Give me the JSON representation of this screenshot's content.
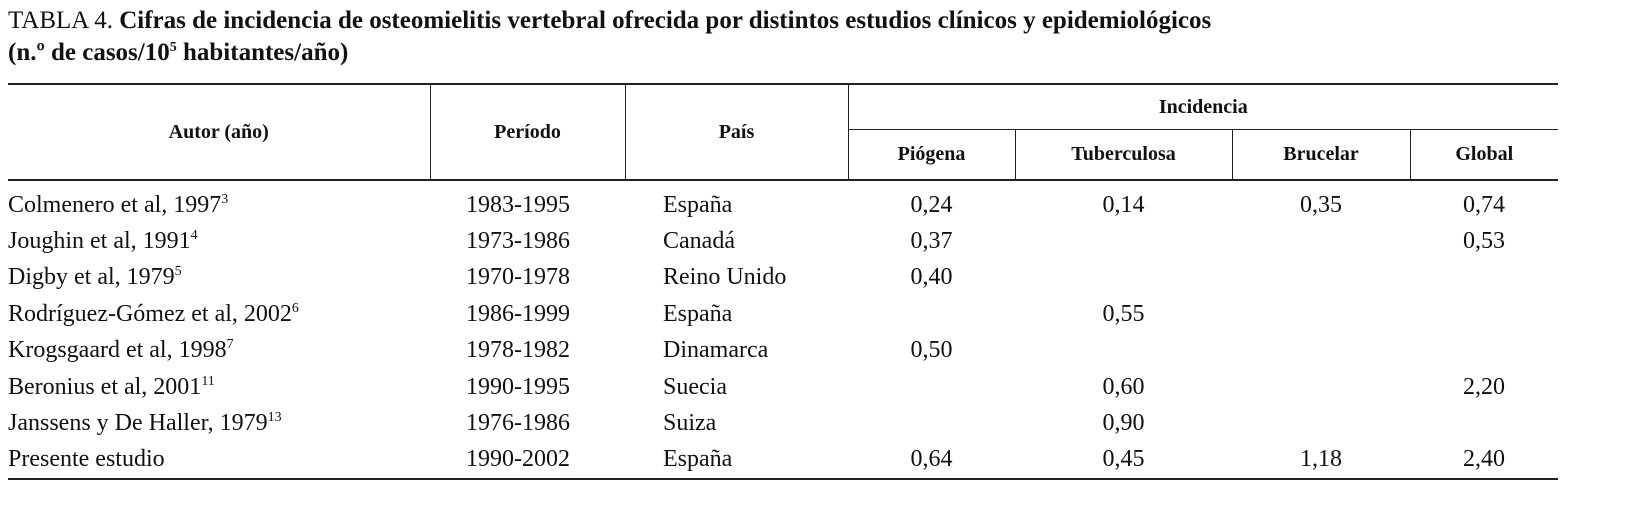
{
  "caption": {
    "label": "TABLA 4.",
    "title": "Cifras de incidencia de osteomielitis vertebral ofrecida por distintos estudios clínicos y epidemiológicos",
    "unit_prefix": "(n.º de casos/10",
    "unit_exponent": "5",
    "unit_suffix": " habitantes/año)"
  },
  "table": {
    "headers": {
      "author": "Autor (año)",
      "period": "Período",
      "country": "País",
      "incidence": "Incidencia",
      "sub": [
        "Piógena",
        "Tuberculosa",
        "Brucelar",
        "Global"
      ]
    },
    "rows": [
      {
        "author": "Colmenero et al, 1997",
        "ref": "3",
        "period": "1983-1995",
        "country": "España",
        "values": [
          "0,24",
          "0,14",
          "0,35",
          "0,74"
        ]
      },
      {
        "author": "Joughin et al, 1991",
        "ref": "4",
        "period": "1973-1986",
        "country": "Canadá",
        "values": [
          "0,37",
          null,
          null,
          "0,53"
        ]
      },
      {
        "author": "Digby et al, 1979",
        "ref": "5",
        "period": "1970-1978",
        "country": "Reino Unido",
        "values": [
          "0,40",
          null,
          null,
          null
        ]
      },
      {
        "author": "Rodríguez-Gómez et al, 2002",
        "ref": "6",
        "period": "1986-1999",
        "country": "España",
        "values": [
          null,
          "0,55",
          null,
          null
        ]
      },
      {
        "author": "Krogsgaard et al, 1998",
        "ref": "7",
        "period": "1978-1982",
        "country": "Dinamarca",
        "values": [
          "0,50",
          null,
          null,
          null
        ]
      },
      {
        "author": "Beronius et al, 2001",
        "ref": "11",
        "period": "1990-1995",
        "country": "Suecia",
        "values": [
          null,
          "0,60",
          null,
          "2,20"
        ]
      },
      {
        "author": "Janssens y De Haller, 1979",
        "ref": "13",
        "period": "1976-1986",
        "country": "Suiza",
        "values": [
          null,
          "0,90",
          null,
          null
        ]
      },
      {
        "author": "Presente estudio",
        "ref": null,
        "period": "1990-2002",
        "country": "España",
        "values": [
          "0,64",
          "0,45",
          "1,18",
          "2,40"
        ]
      }
    ]
  }
}
